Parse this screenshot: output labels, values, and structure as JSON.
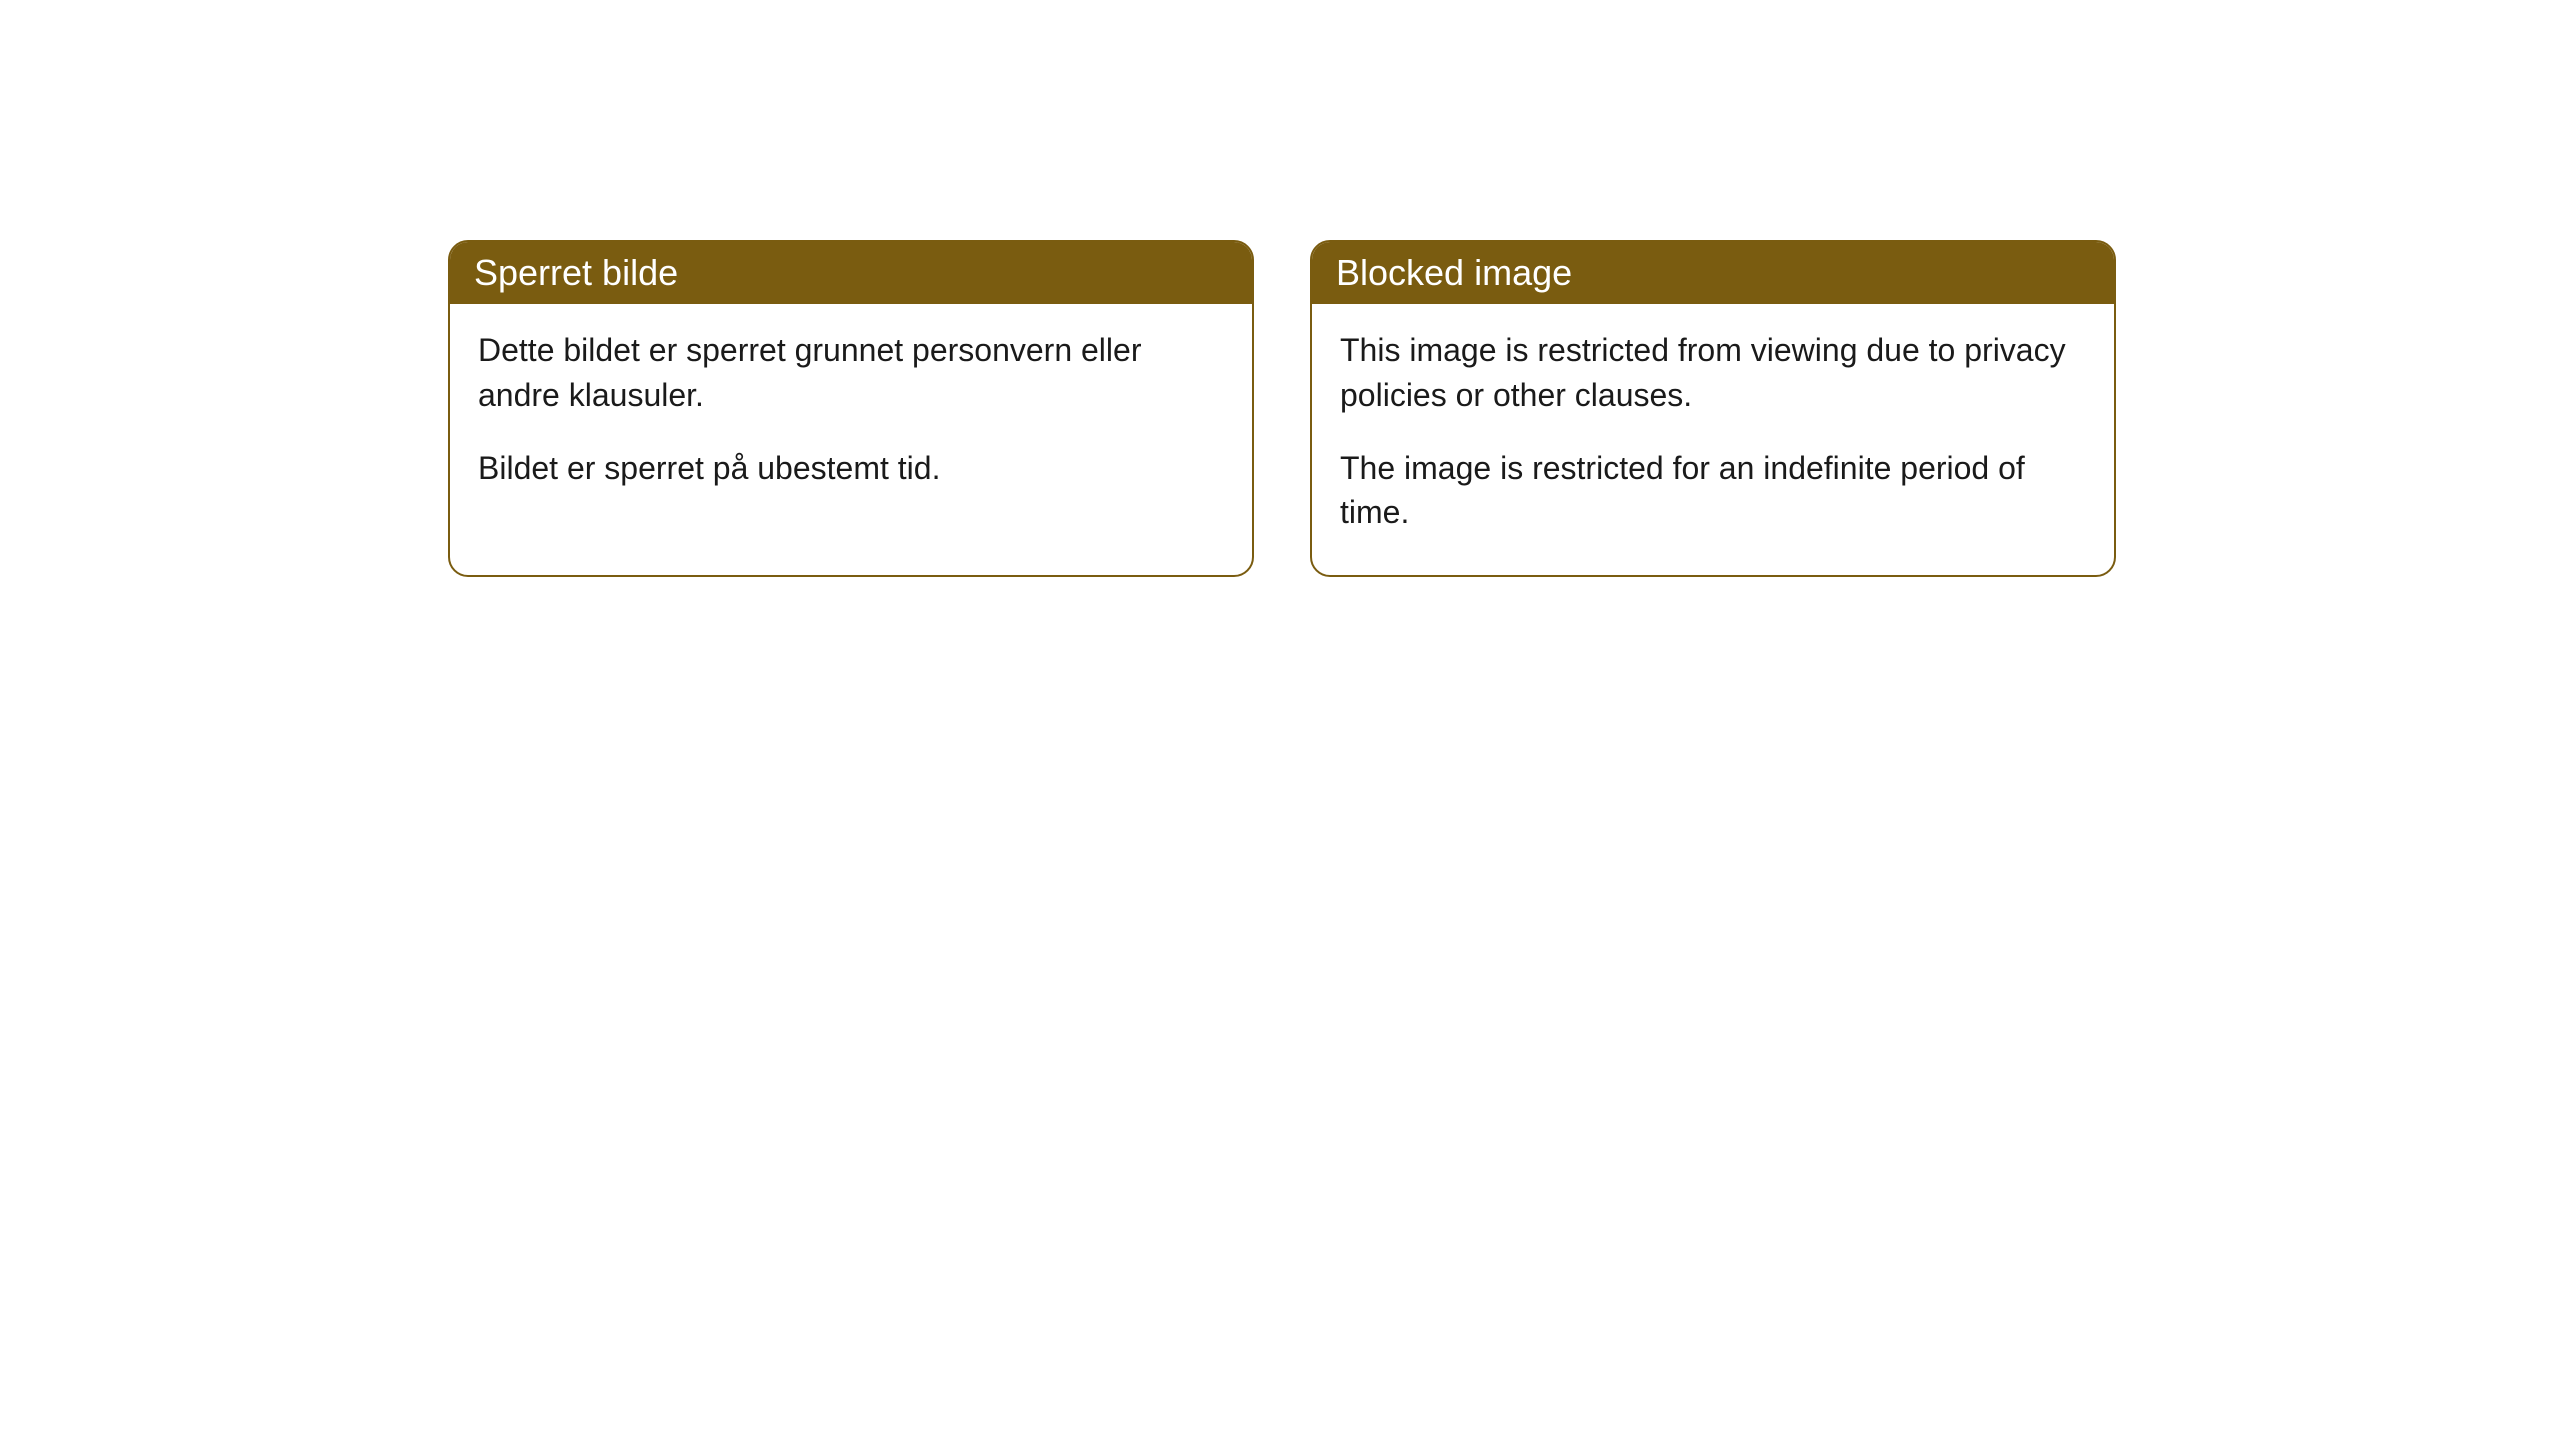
{
  "cards": [
    {
      "title": "Sperret bilde",
      "paragraph1": "Dette bildet er sperret grunnet personvern eller andre klausuler.",
      "paragraph2": "Bildet er sperret på ubestemt tid."
    },
    {
      "title": "Blocked image",
      "paragraph1": "This image is restricted from viewing due to privacy policies or other clauses.",
      "paragraph2": "The image is restricted for an indefinite period of time."
    }
  ],
  "styling": {
    "header_bg_color": "#7a5c10",
    "header_text_color": "#ffffff",
    "border_color": "#7a5c10",
    "body_bg_color": "#ffffff",
    "body_text_color": "#1a1a1a",
    "border_radius": 20,
    "header_fontsize": 36,
    "body_fontsize": 32
  }
}
